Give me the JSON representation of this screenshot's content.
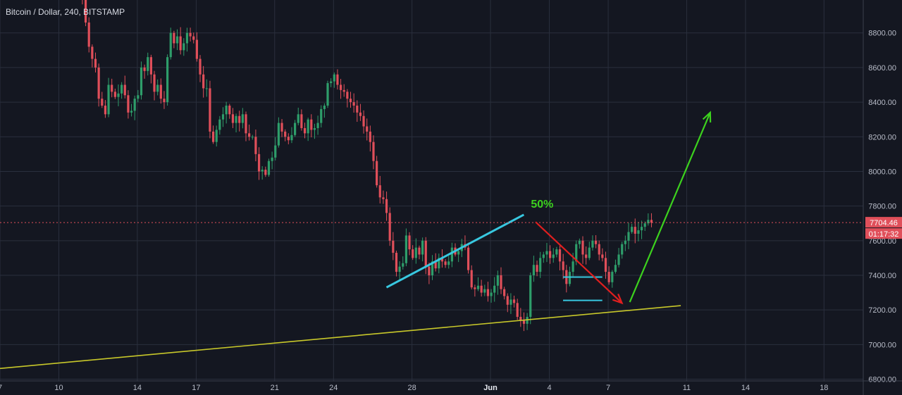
{
  "header": {
    "title": "Bitcoin / Dollar, 240, BITSTAMP"
  },
  "colors": {
    "background": "#141721",
    "grid": "#2a2f3d",
    "up": "#2e9d6a",
    "down": "#e04f5a",
    "price_line": "#e04f5a",
    "trend_line": "#c8c82a",
    "wedge_line": "#38c8e0",
    "target_line": "#38c8e0",
    "arrow_down": "#e01f1f",
    "arrow_up": "#3cd21e",
    "percent_label": "#3cd21e"
  },
  "chart_data": {
    "type": "candlestick",
    "x_ticks": [
      "7",
      "10",
      "14",
      "17",
      "21",
      "24",
      "28",
      "Jun",
      "4",
      "7",
      "11",
      "14",
      "18"
    ],
    "x_tick_days": [
      7,
      10,
      14,
      17,
      21,
      24,
      28,
      32,
      35,
      38,
      42,
      45,
      49
    ],
    "y_ticks": [
      "6800.00",
      "7000.00",
      "7200.00",
      "7400.00",
      "7600.00",
      "7800.00",
      "8000.00",
      "8200.00",
      "8400.00",
      "8600.00",
      "8800.00"
    ],
    "y_tick_values": [
      6800,
      7000,
      7200,
      7400,
      7600,
      7800,
      8000,
      8200,
      8400,
      8600,
      8800
    ],
    "ylim": [
      6790,
      8990
    ],
    "xlim_days": [
      7,
      51
    ],
    "grid": true,
    "current_price": {
      "value": 7704.46,
      "label": "7704.46",
      "countdown": "01:17:32"
    },
    "annotations": {
      "percent_text": "50%",
      "trend_line": {
        "x1": 7,
        "y1": 6862,
        "x2": 41.7,
        "y2": 7225
      },
      "wedge_line": {
        "x1": 26.7,
        "y1": 7330,
        "x2": 33.7,
        "y2": 7750
      },
      "targets": [
        {
          "x1": 35.7,
          "x2": 37.7,
          "y": 7390
        },
        {
          "x1": 35.7,
          "x2": 37.7,
          "y": 7255
        }
      ],
      "arrow_down": {
        "x1": 34.3,
        "y1": 7708,
        "x2": 38.7,
        "y2": 7240
      },
      "arrow_up": {
        "x1": 39.1,
        "y1": 7245,
        "x2": 43.2,
        "y2": 8340
      }
    },
    "candles_closes": [
      9000,
      8860,
      8720,
      8650,
      8600,
      8420,
      8380,
      8330,
      8500,
      8460,
      8430,
      8450,
      8500,
      8440,
      8340,
      8350,
      8420,
      8440,
      8600,
      8580,
      8660,
      8560,
      8460,
      8500,
      8420,
      8400,
      8660,
      8800,
      8740,
      8780,
      8700,
      8740,
      8800,
      8780,
      8760,
      8650,
      8560,
      8480,
      8480,
      8230,
      8170,
      8240,
      8300,
      8330,
      8380,
      8330,
      8280,
      8320,
      8280,
      8330,
      8220,
      8200,
      8200,
      8100,
      8000,
      8010,
      7980,
      8060,
      8080,
      8150,
      8280,
      8230,
      8200,
      8180,
      8210,
      8280,
      8330,
      8250,
      8220,
      8300,
      8240,
      8250,
      8280,
      8360,
      8380,
      8510,
      8520,
      8560,
      8500,
      8470,
      8460,
      8420,
      8400,
      8380,
      8340,
      8320,
      8260,
      8230,
      8170,
      8060,
      7920,
      7850,
      7840,
      7760,
      7600,
      7530,
      7420,
      7450,
      7470,
      7630,
      7550,
      7500,
      7560,
      7520,
      7600,
      7450,
      7400,
      7480,
      7440,
      7500,
      7480,
      7460,
      7480,
      7560,
      7520,
      7540,
      7580,
      7560,
      7430,
      7330,
      7320,
      7340,
      7300,
      7320,
      7280,
      7300,
      7340,
      7400,
      7320,
      7280,
      7230,
      7260,
      7240,
      7160,
      7140,
      7120,
      7160,
      7400,
      7460,
      7420,
      7500,
      7520,
      7540,
      7500,
      7520,
      7550,
      7480,
      7430,
      7350,
      7420,
      7480,
      7580,
      7600,
      7520,
      7500,
      7560,
      7600,
      7580,
      7520,
      7500,
      7420,
      7360,
      7420,
      7460,
      7520,
      7580,
      7600,
      7650,
      7680,
      7640,
      7660,
      7680,
      7700,
      7720,
      7704
    ]
  }
}
